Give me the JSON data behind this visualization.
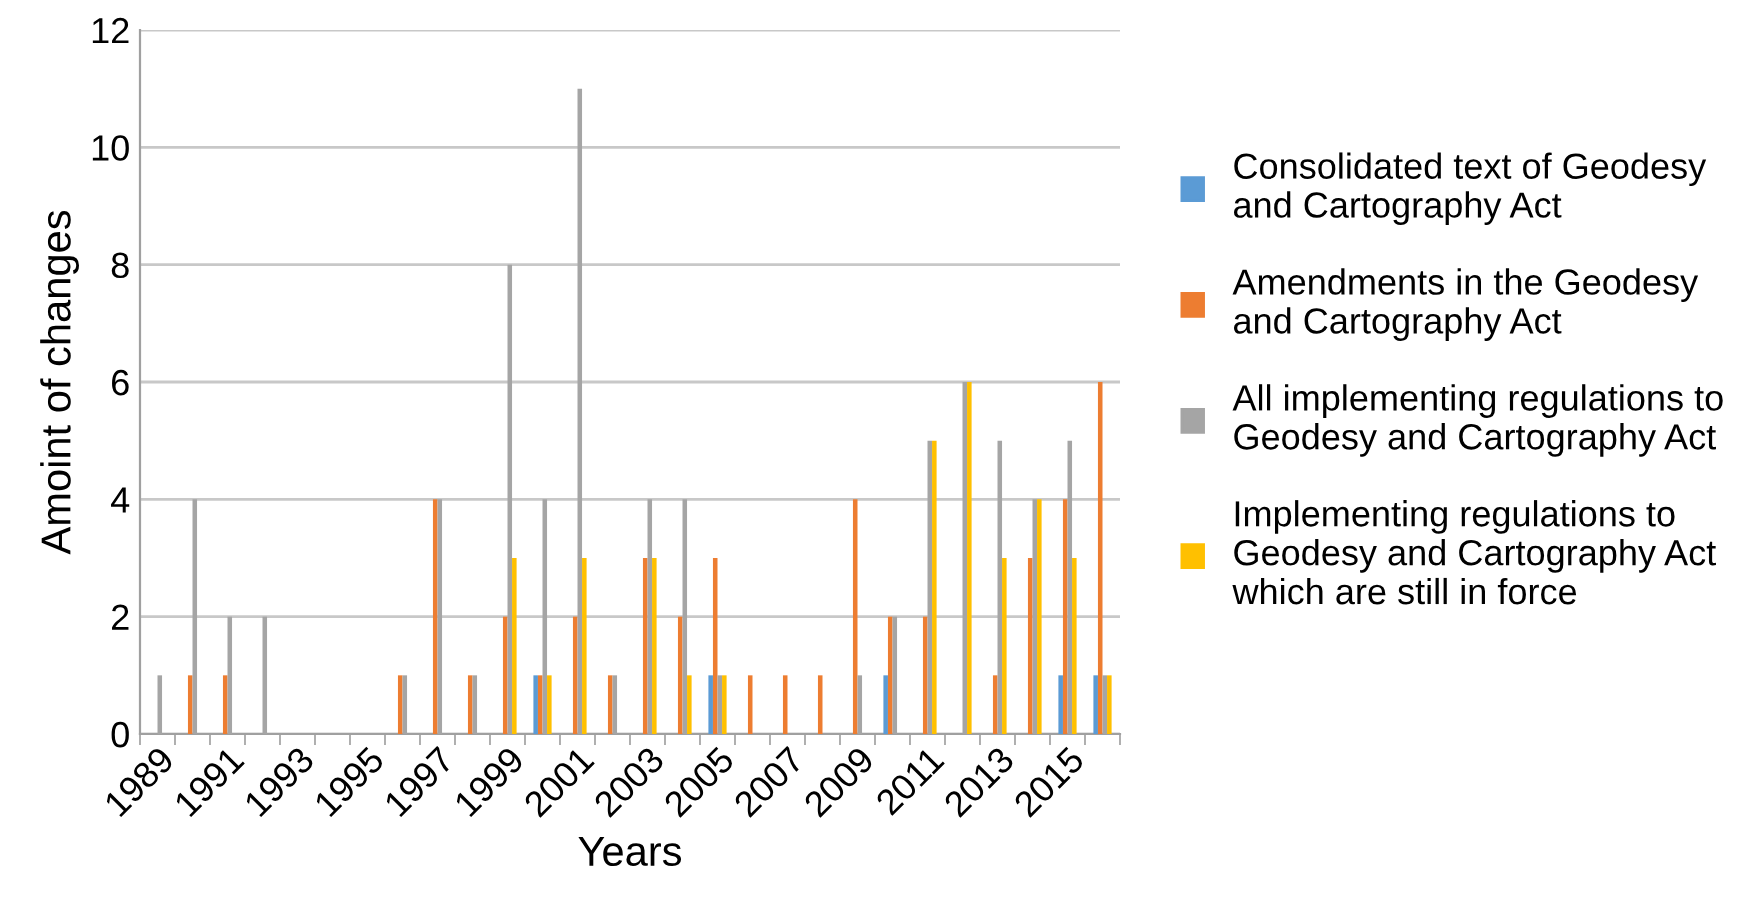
{
  "chart_data": {
    "type": "bar",
    "xlabel": "Years",
    "ylabel": "Amoint of changes",
    "categories": [
      "1989",
      null,
      "1991",
      null,
      "1993",
      null,
      "1995",
      null,
      "1997",
      null,
      "1999",
      null,
      "2001",
      null,
      "2003",
      null,
      "2005",
      null,
      "2007",
      null,
      "2009",
      null,
      "2011",
      null,
      "2013",
      null,
      "2015",
      null
    ],
    "series": [
      {
        "name": "Consolidated text of Geodesy\nand Cartography Act",
        "color": "#5b9bd5",
        "values": [
          0,
          0,
          0,
          0,
          0,
          0,
          0,
          0,
          0,
          0,
          0,
          1,
          0,
          0,
          0,
          0,
          1,
          0,
          0,
          0,
          0,
          1,
          0,
          0,
          0,
          0,
          1,
          1
        ]
      },
      {
        "name": "Amendments in the Geodesy\nand Cartography Act",
        "color": "#ed7d31",
        "values": [
          0,
          1,
          1,
          0,
          0,
          0,
          0,
          1,
          4,
          1,
          2,
          1,
          2,
          1,
          3,
          2,
          3,
          1,
          1,
          1,
          4,
          2,
          2,
          0,
          1,
          3,
          4,
          6
        ]
      },
      {
        "name": "All implementing regulations to\nGeodesy and Cartography Act",
        "color": "#a5a5a5",
        "values": [
          1,
          4,
          2,
          2,
          0,
          0,
          0,
          1,
          4,
          1,
          8,
          4,
          11,
          1,
          4,
          4,
          1,
          0,
          0,
          0,
          1,
          2,
          5,
          6,
          5,
          4,
          5,
          1
        ]
      },
      {
        "name": "Implementing regulations to\nGeodesy and Cartography Act\nwhich are still in force",
        "color": "#ffc000",
        "values": [
          0,
          0,
          0,
          0,
          0,
          0,
          0,
          0,
          0,
          0,
          3,
          1,
          3,
          0,
          3,
          1,
          1,
          0,
          0,
          0,
          0,
          0,
          5,
          6,
          3,
          4,
          3,
          1
        ]
      }
    ],
    "ylim": [
      0,
      12
    ],
    "yticks": [
      0,
      2,
      4,
      6,
      8,
      10,
      12
    ],
    "grid": "y",
    "legend": "right"
  }
}
